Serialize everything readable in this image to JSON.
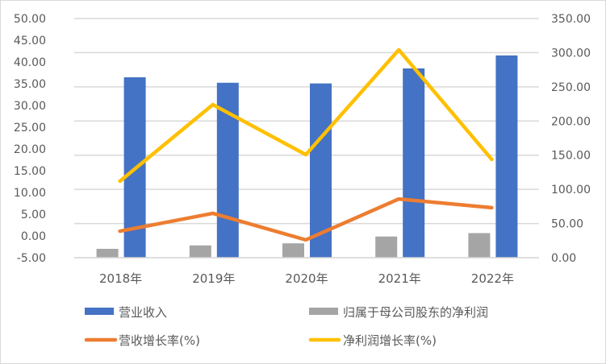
{
  "chart_data": {
    "type": "bar",
    "title": "",
    "xlabel": "",
    "ylabel": "",
    "categories": [
      "2018年",
      "2019年",
      "2020年",
      "2021年",
      "2022年"
    ],
    "left_axis": {
      "ticks": [
        "50.00",
        "45.00",
        "40.00",
        "35.00",
        "30.00",
        "25.00",
        "20.00",
        "15.00",
        "10.00",
        "5.00",
        "0.00",
        "-5.00"
      ],
      "ylim": [
        -5,
        50
      ]
    },
    "right_axis": {
      "ticks": [
        "350.00",
        "300.00",
        "250.00",
        "200.00",
        "150.00",
        "100.00",
        "50.00",
        "0.00"
      ],
      "ylim": [
        0,
        350
      ]
    },
    "grid": true,
    "legend_position": "bottom",
    "series": [
      {
        "name": "营业收入",
        "type": "bar",
        "axis": "right",
        "color": "#4472C4",
        "values": [
          264,
          256,
          255,
          277,
          296
        ]
      },
      {
        "name": "归属于母公司股东的净利润",
        "type": "bar",
        "axis": "right",
        "color": "#A5A5A5",
        "values": [
          13,
          18,
          21,
          31,
          36
        ]
      },
      {
        "name": "营收增长率(%)",
        "type": "line",
        "axis": "left",
        "color": "#ED7D31",
        "values": [
          1.1,
          5.2,
          -0.9,
          8.5,
          6.5
        ]
      },
      {
        "name": "净利润增长率(%)",
        "type": "line",
        "axis": "left",
        "color": "#FFC000",
        "values": [
          12.6,
          30.2,
          18.7,
          42.8,
          17.6
        ]
      }
    ]
  }
}
